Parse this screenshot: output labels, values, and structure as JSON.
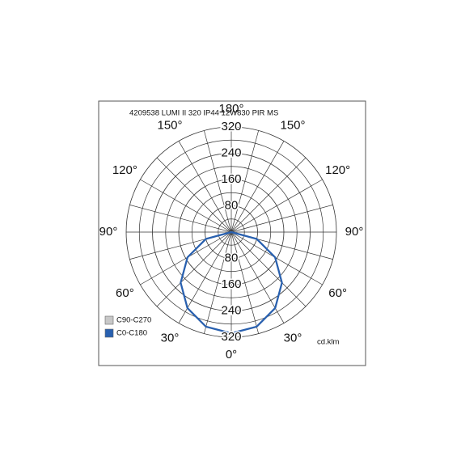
{
  "chart_data": {
    "type": "polar",
    "title": "4209538 LUMI II 320 IP44 12W830 PIR MS",
    "unit": "cd.klm",
    "angle_ticks": [
      {
        "value": 0,
        "label": "0°"
      },
      {
        "value": 30,
        "label": "30°"
      },
      {
        "value": 60,
        "label": "60°"
      },
      {
        "value": 90,
        "label": "90°"
      },
      {
        "value": 120,
        "label": "120°"
      },
      {
        "value": 150,
        "label": "150°"
      },
      {
        "value": 180,
        "label": "180°"
      }
    ],
    "rlim": [
      0,
      320
    ],
    "rticks": [
      80,
      160,
      240,
      320
    ],
    "angles": [
      0,
      15,
      30,
      45,
      60,
      75,
      90
    ],
    "series": [
      {
        "name": "C90-C270",
        "color": "#c8c8c8",
        "values": [
          308,
          298,
          267,
          218,
          154,
          80,
          0
        ]
      },
      {
        "name": "C0-C180",
        "color": "#2860b0",
        "values": [
          308,
          298,
          267,
          218,
          154,
          80,
          0
        ]
      }
    ]
  }
}
